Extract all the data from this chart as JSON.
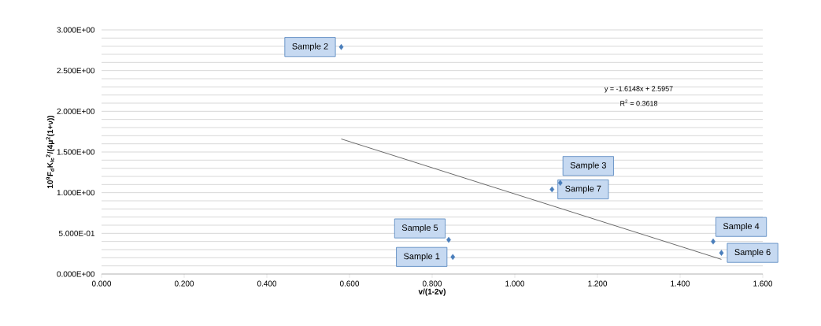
{
  "chart_data": {
    "type": "scatter",
    "xlabel": "v/(1-2v)",
    "ylabel": "10$^{9}$F$_{d}$K$_{Ic}$$^{2}$/(4μ$^{2}$(1+ν))",
    "series": [
      {
        "color": "#4a7ebb",
        "marker": "diamond",
        "x": [
          0.58,
          0.84,
          0.85,
          1.11,
          1.09,
          1.48,
          1.5
        ],
        "values": [
          2.79,
          0.42,
          0.21,
          1.12,
          1.04,
          0.4,
          0.26
        ]
      },
      {
        "type": "line",
        "color": "#595959",
        "marker": "none",
        "x": [
          0.58,
          1.5
        ],
        "values": [
          1.66,
          0.18
        ]
      }
    ],
    "annotations": [
      {
        "text": "Sample 2",
        "x": 0.58,
        "y": 2.79
      },
      {
        "text": "Sample 5",
        "x": 0.84,
        "y": 0.42
      },
      {
        "text": "Sample 1",
        "x": 0.85,
        "y": 0.21
      },
      {
        "text": "Sample 3",
        "x": 1.11,
        "y": 1.12
      },
      {
        "text": "Sample 7",
        "x": 1.09,
        "y": 1.04
      },
      {
        "text": "Sample 4",
        "x": 1.48,
        "y": 0.4
      },
      {
        "text": "Sample 6",
        "x": 1.5,
        "y": 0.26
      },
      "y = -1.6148x + 2.5957",
      "R$^{2}$ = 0.3618"
    ],
    "xlim": [
      0,
      1.6
    ],
    "ylim": [
      0,
      3
    ],
    "xticks": [
      {
        "value": 0,
        "label": "0.000"
      },
      {
        "value": 0.2,
        "label": "0.200"
      },
      {
        "value": 0.4,
        "label": "0.400"
      },
      {
        "value": 0.6,
        "label": "0.600"
      },
      {
        "value": 0.8,
        "label": "0.800"
      },
      {
        "value": 1,
        "label": "1.000"
      },
      {
        "value": 1.2,
        "label": "1.200"
      },
      {
        "value": 1.4,
        "label": "1.400"
      },
      {
        "value": 1.6,
        "label": "1.600"
      }
    ],
    "yticks": [
      {
        "value": 0,
        "label": "0.000E+00"
      },
      {
        "value": 0.1,
        "label": null
      },
      {
        "value": 0.2,
        "label": null
      },
      {
        "value": 0.3,
        "label": null
      },
      {
        "value": 0.4,
        "label": null
      },
      {
        "value": 0.5,
        "label": "5.000E-01"
      },
      {
        "value": 0.6,
        "label": null
      },
      {
        "value": 0.7,
        "label": null
      },
      {
        "value": 0.8,
        "label": null
      },
      {
        "value": 0.9,
        "label": null
      },
      {
        "value": 1,
        "label": "1.000E+00"
      },
      {
        "value": 1.1,
        "label": null
      },
      {
        "value": 1.2,
        "label": null
      },
      {
        "value": 1.3,
        "label": null
      },
      {
        "value": 1.4,
        "label": null
      },
      {
        "value": 1.5,
        "label": "1.500E+00"
      },
      {
        "value": 1.6,
        "label": null
      },
      {
        "value": 1.7,
        "label": null
      },
      {
        "value": 1.8,
        "label": null
      },
      {
        "value": 1.9,
        "label": null
      },
      {
        "value": 2,
        "label": "2.000E+00"
      },
      {
        "value": 2.1,
        "label": null
      },
      {
        "value": 2.2,
        "label": null
      },
      {
        "value": 2.3,
        "label": null
      },
      {
        "value": 2.4,
        "label": null
      },
      {
        "value": 2.5,
        "label": "2.500E+00"
      },
      {
        "value": 2.6,
        "label": null
      },
      {
        "value": 2.7,
        "label": null
      },
      {
        "value": 2.8,
        "label": null
      },
      {
        "value": 2.9,
        "label": null
      },
      {
        "value": 3,
        "label": "3.000E+00"
      }
    ],
    "grid": "y"
  }
}
